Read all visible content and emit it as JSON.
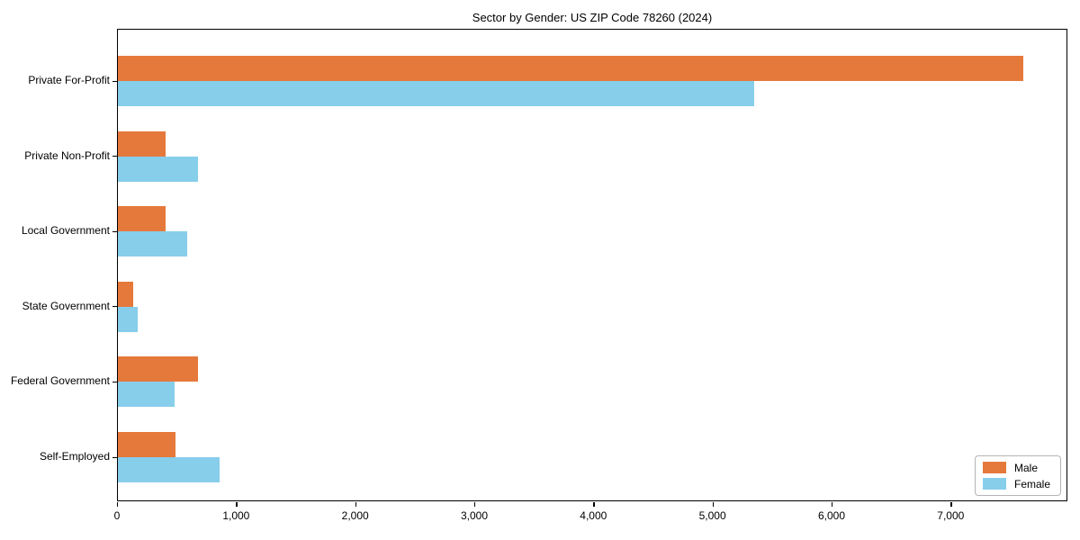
{
  "chart_data": {
    "type": "bar",
    "orientation": "horizontal",
    "title": "Sector by Gender: US ZIP Code 78260 (2024)",
    "xlabel": "",
    "ylabel": "",
    "categories": [
      "Private For-Profit",
      "Private Non-Profit",
      "Local Government",
      "State Government",
      "Federal Government",
      "Self-Employed"
    ],
    "series": [
      {
        "name": "Male",
        "color": "#e5793b",
        "values": [
          7600,
          400,
          400,
          130,
          670,
          480
        ]
      },
      {
        "name": "Female",
        "color": "#87ceeb",
        "values": [
          5340,
          670,
          580,
          165,
          475,
          855
        ]
      }
    ],
    "xlim": [
      0,
      7980
    ],
    "xticks": [
      0,
      1000,
      2000,
      3000,
      4000,
      5000,
      6000,
      7000
    ],
    "xtick_labels": [
      "0",
      "1,000",
      "2,000",
      "3,000",
      "4,000",
      "5,000",
      "6,000",
      "7,000"
    ],
    "grid": false,
    "legend_position": "lower right"
  },
  "legend": {
    "male_label": "Male",
    "female_label": "Female"
  }
}
